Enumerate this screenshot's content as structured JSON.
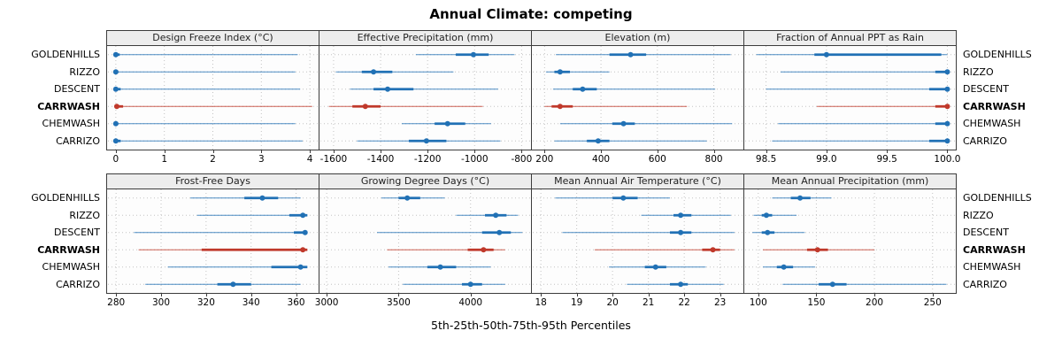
{
  "title": "Annual Climate: competing",
  "caption": "5th-25th-50th-75th-95th Percentiles",
  "colors": {
    "series_default": "#2171b5",
    "series_highlight": "#c0392b",
    "grid": "#c3c3c3",
    "panel_border": "#3c3c3c",
    "header_bg": "#ededed",
    "plot_bg": "#fdfdfd",
    "tick": "#3c3c3c"
  },
  "sites": [
    {
      "name": "GOLDENHILLS",
      "bold": false,
      "color": "#2171b5"
    },
    {
      "name": "RIZZO",
      "bold": false,
      "color": "#2171b5"
    },
    {
      "name": "DESCENT",
      "bold": false,
      "color": "#2171b5"
    },
    {
      "name": "CARRWASH",
      "bold": true,
      "color": "#c0392b"
    },
    {
      "name": "CHEMWASH",
      "bold": false,
      "color": "#2171b5"
    },
    {
      "name": "CARRIZO",
      "bold": false,
      "color": "#2171b5"
    }
  ],
  "chart_data": {
    "type": "dotplot-intervals",
    "note": "each series row = [p5, p25, p50, p75, p95]",
    "percentiles": [
      5,
      25,
      50,
      75,
      95
    ],
    "categories": [
      "GOLDENHILLS",
      "RIZZO",
      "DESCENT",
      "CARRWASH",
      "CHEMWASH",
      "CARRIZO"
    ],
    "highlight_category": "CARRWASH",
    "panels": [
      {
        "title": "Design Freeze Index (°C)",
        "xlim": [
          -0.18,
          4.18
        ],
        "ticks": [
          0,
          1,
          2,
          3,
          4
        ],
        "tick_labels": [
          "0",
          "1",
          "2",
          "3",
          "4"
        ],
        "series": {
          "GOLDENHILLS": [
            0,
            0,
            0,
            0.08,
            3.75
          ],
          "RIZZO": [
            0,
            0,
            0,
            0.05,
            3.7
          ],
          "DESCENT": [
            0,
            0,
            0,
            0.1,
            3.8
          ],
          "CARRWASH": [
            0,
            0,
            0.02,
            0.15,
            4.05
          ],
          "CHEMWASH": [
            0,
            0,
            0,
            0.05,
            3.7
          ],
          "CARRIZO": [
            0,
            0,
            0,
            0.1,
            3.85
          ]
        }
      },
      {
        "title": "Effective Precipitation (mm)",
        "xlim": [
          -1660,
          -760
        ],
        "ticks": [
          -1600,
          -1400,
          -1200,
          -1000,
          -800
        ],
        "tick_labels": [
          "-1600",
          "-1400",
          "-1200",
          "-1000",
          "-800"
        ],
        "series": {
          "GOLDENHILLS": [
            -1250,
            -1080,
            -1005,
            -940,
            -830
          ],
          "RIZZO": [
            -1590,
            -1480,
            -1430,
            -1350,
            -1090
          ],
          "DESCENT": [
            -1530,
            -1430,
            -1370,
            -1260,
            -900
          ],
          "CARRWASH": [
            -1620,
            -1520,
            -1465,
            -1400,
            -965
          ],
          "CHEMWASH": [
            -1310,
            -1170,
            -1115,
            -1040,
            -930
          ],
          "CARRIZO": [
            -1500,
            -1280,
            -1205,
            -1120,
            -890
          ]
        }
      },
      {
        "title": "Elevation (m)",
        "xlim": [
          155,
          905
        ],
        "ticks": [
          200,
          400,
          600,
          800
        ],
        "tick_labels": [
          "200",
          "400",
          "600",
          "800"
        ],
        "series": {
          "GOLDENHILLS": [
            240,
            430,
            505,
            560,
            860
          ],
          "RIZZO": [
            205,
            235,
            255,
            290,
            430
          ],
          "DESCENT": [
            230,
            300,
            335,
            385,
            805
          ],
          "CARRWASH": [
            200,
            225,
            255,
            300,
            705
          ],
          "CHEMWASH": [
            255,
            440,
            480,
            520,
            865
          ],
          "CARRIZO": [
            235,
            350,
            390,
            430,
            775
          ]
        }
      },
      {
        "title": "Fraction of Annual PPT as Rain",
        "xlim": [
          98.32,
          100.07
        ],
        "ticks": [
          98.5,
          99.0,
          99.5,
          100.0
        ],
        "tick_labels": [
          "98.5",
          "99.0",
          "99.5",
          "100.0"
        ],
        "series": {
          "GOLDENHILLS": [
            98.42,
            98.9,
            99.0,
            99.95,
            100.0
          ],
          "RIZZO": [
            98.62,
            99.9,
            100.0,
            100.0,
            100.0
          ],
          "DESCENT": [
            98.5,
            99.85,
            100.0,
            100.0,
            100.0
          ],
          "CARRWASH": [
            98.92,
            99.9,
            100.0,
            100.0,
            100.0
          ],
          "CHEMWASH": [
            98.6,
            99.9,
            100.0,
            100.0,
            100.0
          ],
          "CARRIZO": [
            98.55,
            99.85,
            100.0,
            100.0,
            100.0
          ]
        }
      },
      {
        "title": "Frost-Free Days",
        "xlim": [
          276,
          370
        ],
        "ticks": [
          280,
          300,
          320,
          340,
          360
        ],
        "tick_labels": [
          "280",
          "300",
          "320",
          "340",
          "360"
        ],
        "series": {
          "GOLDENHILLS": [
            313,
            337,
            345,
            352,
            362
          ],
          "RIZZO": [
            316,
            357,
            363,
            365,
            365
          ],
          "DESCENT": [
            288,
            359,
            364,
            365,
            365
          ],
          "CARRWASH": [
            290,
            318,
            363,
            365,
            365
          ],
          "CHEMWASH": [
            303,
            349,
            362,
            365,
            365
          ],
          "CARRIZO": [
            293,
            325,
            332,
            340,
            362
          ]
        }
      },
      {
        "title": "Growing Degree Days (°C)",
        "xlim": [
          2950,
          4420
        ],
        "ticks": [
          3000,
          3500,
          4000
        ],
        "tick_labels": [
          "3000",
          "3500",
          "4000"
        ],
        "series": {
          "GOLDENHILLS": [
            3380,
            3500,
            3560,
            3650,
            3820
          ],
          "RIZZO": [
            3900,
            4100,
            4175,
            4250,
            4330
          ],
          "DESCENT": [
            3350,
            4080,
            4200,
            4280,
            4360
          ],
          "CARRWASH": [
            3420,
            3980,
            4090,
            4160,
            4240
          ],
          "CHEMWASH": [
            3430,
            3700,
            3790,
            3900,
            4140
          ],
          "CARRIZO": [
            3530,
            3940,
            4000,
            4080,
            4240
          ]
        }
      },
      {
        "title": "Mean Annual Air Temperature (°C)",
        "xlim": [
          17.75,
          23.65
        ],
        "ticks": [
          18,
          19,
          20,
          21,
          22,
          23
        ],
        "tick_labels": [
          "18",
          "19",
          "20",
          "21",
          "22",
          "23"
        ],
        "series": {
          "GOLDENHILLS": [
            18.4,
            20.0,
            20.3,
            20.7,
            21.6
          ],
          "RIZZO": [
            20.8,
            21.7,
            21.9,
            22.2,
            23.3
          ],
          "DESCENT": [
            18.6,
            21.6,
            21.9,
            22.2,
            23.4
          ],
          "CARRWASH": [
            19.5,
            22.5,
            22.8,
            23.0,
            23.4
          ],
          "CHEMWASH": [
            19.9,
            20.9,
            21.2,
            21.5,
            22.6
          ],
          "CARRIZO": [
            20.4,
            21.6,
            21.9,
            22.1,
            23.1
          ]
        }
      },
      {
        "title": "Mean Annual Precipitation (mm)",
        "xlim": [
          88,
          270
        ],
        "ticks": [
          100,
          150,
          200,
          250
        ],
        "tick_labels": [
          "100",
          "150",
          "200",
          "250"
        ],
        "series": {
          "GOLDENHILLS": [
            112,
            128,
            136,
            145,
            163
          ],
          "RIZZO": [
            96,
            103,
            107,
            112,
            133
          ],
          "DESCENT": [
            95,
            103,
            108,
            114,
            140
          ],
          "CARRWASH": [
            104,
            142,
            151,
            160,
            200
          ],
          "CHEMWASH": [
            104,
            116,
            122,
            130,
            149
          ],
          "CARRIZO": [
            121,
            152,
            164,
            176,
            262
          ]
        }
      }
    ]
  }
}
